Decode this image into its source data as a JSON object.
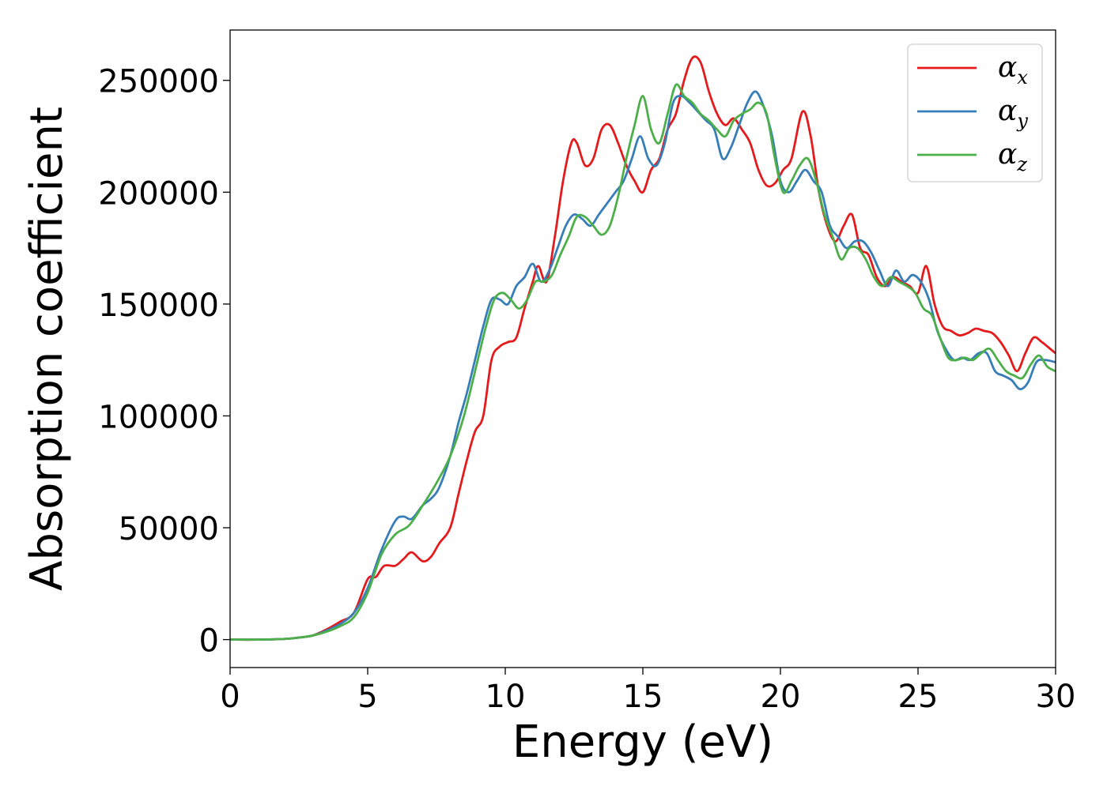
{
  "chart_data": {
    "type": "line",
    "xlabel": "Energy (eV)",
    "ylabel": "Absorption coefficient",
    "xlim": [
      0,
      30
    ],
    "ylim": [
      -12500,
      272500
    ],
    "xticks": [
      "0",
      "5",
      "10",
      "15",
      "20",
      "25",
      "30"
    ],
    "yticks": [
      "0",
      "50000",
      "100000",
      "150000",
      "200000",
      "250000"
    ],
    "grid": false,
    "legend_position": "top-right",
    "series": [
      {
        "name": "α_x",
        "label_main": "α",
        "label_sub": "x",
        "color": "#e41a1c",
        "x": [
          0,
          1,
          2,
          2.5,
          3,
          3.5,
          4,
          4.5,
          5,
          5.3,
          5.6,
          6,
          6.3,
          6.6,
          7,
          7.3,
          7.6,
          8,
          8.3,
          8.6,
          8.9,
          9.2,
          9.5,
          9.8,
          10.1,
          10.4,
          10.7,
          11,
          11.2,
          11.5,
          11.8,
          12.1,
          12.4,
          12.6,
          12.9,
          13.2,
          13.5,
          13.8,
          14.1,
          14.4,
          14.7,
          15,
          15.3,
          15.6,
          15.9,
          16.2,
          16.5,
          16.8,
          17.1,
          17.4,
          17.7,
          18,
          18.3,
          18.6,
          18.9,
          19.2,
          19.5,
          19.8,
          20.1,
          20.4,
          20.8,
          21.1,
          21.4,
          21.7,
          22,
          22.3,
          22.6,
          22.9,
          23.2,
          23.5,
          23.8,
          24.1,
          24.4,
          24.7,
          25,
          25.3,
          25.6,
          25.9,
          26.2,
          26.5,
          26.8,
          27.1,
          27.4,
          27.7,
          28,
          28.3,
          28.6,
          28.9,
          29.2,
          29.5,
          29.8,
          30
        ],
        "y": [
          0,
          0,
          300,
          900,
          1800,
          4500,
          8000,
          12000,
          27000,
          28000,
          33000,
          33000,
          36000,
          39000,
          35000,
          37000,
          43000,
          50000,
          65000,
          80000,
          93000,
          100000,
          125000,
          131000,
          133000,
          135000,
          148000,
          160000,
          167000,
          160000,
          180000,
          205000,
          222000,
          222000,
          212000,
          215000,
          228000,
          230000,
          222000,
          212000,
          205000,
          200000,
          210000,
          215000,
          228000,
          235000,
          250000,
          260000,
          258000,
          245000,
          235000,
          230000,
          233000,
          228000,
          222000,
          210000,
          203000,
          204000,
          210000,
          215000,
          236000,
          225000,
          200000,
          185000,
          178000,
          185000,
          190000,
          175000,
          172000,
          162000,
          158000,
          162000,
          160000,
          158000,
          155000,
          167000,
          150000,
          140000,
          138000,
          136000,
          137000,
          139000,
          138000,
          137000,
          133000,
          127000,
          120000,
          128000,
          135000,
          133000,
          130000,
          128000
        ]
      },
      {
        "name": "α_y",
        "label_main": "α",
        "label_sub": "y",
        "color": "#377eb8",
        "x": [
          0,
          1,
          2,
          2.5,
          3,
          3.5,
          4,
          4.5,
          5,
          5.5,
          6,
          6.3,
          6.6,
          7,
          7.3,
          7.6,
          8,
          8.3,
          8.6,
          8.9,
          9.2,
          9.5,
          9.8,
          10.1,
          10.4,
          10.7,
          11,
          11.3,
          11.6,
          11.9,
          12.2,
          12.5,
          12.8,
          13.1,
          13.4,
          13.7,
          14,
          14.3,
          14.6,
          14.9,
          15.2,
          15.5,
          15.8,
          16.1,
          16.4,
          16.7,
          17,
          17.3,
          17.6,
          17.9,
          18.2,
          18.5,
          18.8,
          19.1,
          19.4,
          19.7,
          20,
          20.3,
          20.6,
          20.9,
          21.2,
          21.5,
          21.8,
          22.1,
          22.4,
          22.7,
          23,
          23.3,
          23.6,
          23.9,
          24.2,
          24.5,
          24.8,
          25.1,
          25.4,
          25.7,
          26,
          26.3,
          26.6,
          26.9,
          27.2,
          27.5,
          27.8,
          28.1,
          28.4,
          28.7,
          29,
          29.3,
          29.6,
          30
        ],
        "y": [
          0,
          0,
          300,
          900,
          1800,
          4000,
          7000,
          12000,
          23000,
          40000,
          53000,
          55000,
          54000,
          60000,
          63000,
          68000,
          82000,
          97000,
          110000,
          125000,
          140000,
          152000,
          152000,
          150000,
          158000,
          162000,
          168000,
          160000,
          165000,
          175000,
          185000,
          190000,
          188000,
          185000,
          190000,
          195000,
          200000,
          205000,
          215000,
          225000,
          215000,
          212000,
          222000,
          240000,
          243000,
          240000,
          236000,
          232000,
          228000,
          215000,
          220000,
          230000,
          240000,
          245000,
          238000,
          225000,
          205000,
          200000,
          205000,
          210000,
          205000,
          200000,
          185000,
          180000,
          175000,
          178000,
          178000,
          173000,
          165000,
          158000,
          165000,
          160000,
          163000,
          160000,
          152000,
          138000,
          130000,
          125000,
          126000,
          125000,
          128000,
          128000,
          120000,
          118000,
          116000,
          112000,
          115000,
          124000,
          125000,
          124000
        ]
      },
      {
        "name": "α_z",
        "label_main": "α",
        "label_sub": "z",
        "color": "#4daf4a",
        "x": [
          0,
          1,
          2,
          2.5,
          3,
          3.5,
          4,
          4.5,
          5,
          5.5,
          6,
          6.5,
          7,
          7.5,
          8,
          8.5,
          9,
          9.3,
          9.6,
          9.9,
          10.2,
          10.5,
          10.8,
          11.1,
          11.4,
          11.7,
          12,
          12.3,
          12.6,
          12.9,
          13.2,
          13.5,
          13.8,
          14.1,
          14.4,
          14.7,
          15,
          15.3,
          15.6,
          15.9,
          16.2,
          16.5,
          16.8,
          17.1,
          17.4,
          17.7,
          18,
          18.3,
          18.6,
          18.9,
          19.2,
          19.5,
          19.8,
          20.1,
          20.4,
          20.7,
          21,
          21.3,
          21.6,
          21.9,
          22.2,
          22.5,
          22.8,
          23.1,
          23.4,
          23.7,
          24,
          24.3,
          24.6,
          24.9,
          25.2,
          25.5,
          25.8,
          26.1,
          26.4,
          26.7,
          27,
          27.3,
          27.6,
          27.9,
          28.2,
          28.5,
          28.8,
          29.1,
          29.4,
          29.7,
          30
        ],
        "y": [
          0,
          0,
          300,
          900,
          1800,
          3500,
          6000,
          10000,
          21000,
          38000,
          47000,
          51000,
          60000,
          70000,
          82000,
          100000,
          125000,
          140000,
          152000,
          155000,
          152000,
          148000,
          152000,
          160000,
          160000,
          163000,
          172000,
          180000,
          189000,
          189000,
          185000,
          181000,
          185000,
          198000,
          215000,
          230000,
          243000,
          228000,
          222000,
          235000,
          248000,
          243000,
          240000,
          235000,
          232000,
          228000,
          225000,
          232000,
          235000,
          237000,
          240000,
          235000,
          215000,
          200000,
          205000,
          212000,
          215000,
          205000,
          190000,
          180000,
          170000,
          175000,
          175000,
          170000,
          162000,
          158000,
          162000,
          160000,
          158000,
          155000,
          148000,
          145000,
          135000,
          126000,
          125000,
          126000,
          125000,
          128000,
          130000,
          125000,
          120000,
          118000,
          117000,
          123000,
          127000,
          122000,
          120000
        ]
      }
    ]
  }
}
